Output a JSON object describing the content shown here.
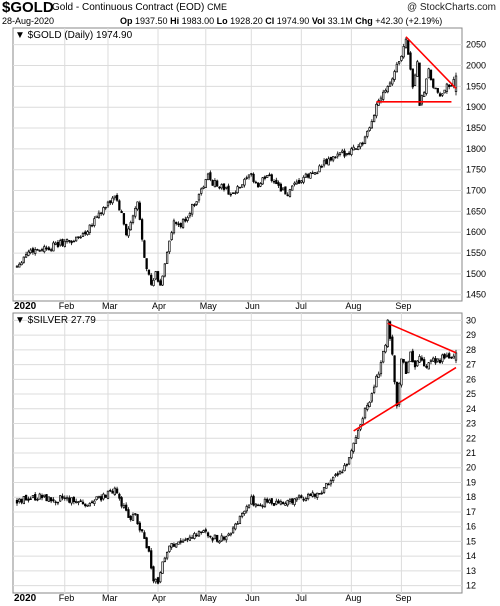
{
  "header": {
    "symbol": "$GOLD",
    "description": "Gold - Continuous Contract (EOD)",
    "exchange": "CME",
    "credit": "@ StockCharts.com",
    "date": "28-Aug-2020",
    "quote": {
      "op_label": "Op",
      "op": "1937.50",
      "hi_label": "Hi",
      "hi": "1983.00",
      "lo_label": "Lo",
      "lo": "1928.20",
      "cl_label": "Cl",
      "cl": "1974.90",
      "vol_label": "Vol",
      "vol": "33.1M",
      "chg_label": "Chg",
      "chg": "+42.30 (+2.19%)"
    }
  },
  "colors": {
    "candle": "#000000",
    "trendline": "#ff0000",
    "grid": "#dcdcdc",
    "frame": "#888888"
  },
  "chart_data": [
    {
      "type": "candlestick",
      "legend": "$GOLD (Daily) 1974.90",
      "y_axis_side": "right",
      "ylim": [
        1435,
        2090
      ],
      "yticks": [
        1450,
        1500,
        1550,
        1600,
        1650,
        1700,
        1750,
        1800,
        1850,
        1900,
        1950,
        2000,
        2050
      ],
      "x_labels": [
        "2020",
        "Feb",
        "Mar",
        "Apr",
        "May",
        "Jun",
        "Jul",
        "Aug",
        "Sep"
      ],
      "grid": true,
      "anchors": [
        [
          0,
          1520
        ],
        [
          5,
          1555
        ],
        [
          10,
          1560
        ],
        [
          15,
          1565
        ],
        [
          20,
          1575
        ],
        [
          25,
          1580
        ],
        [
          30,
          1600
        ],
        [
          35,
          1640
        ],
        [
          40,
          1665
        ],
        [
          43,
          1690
        ],
        [
          46,
          1640
        ],
        [
          48,
          1595
        ],
        [
          50,
          1620
        ],
        [
          53,
          1670
        ],
        [
          56,
          1545
        ],
        [
          59,
          1470
        ],
        [
          61,
          1500
        ],
        [
          63,
          1470
        ],
        [
          66,
          1555
        ],
        [
          69,
          1620
        ],
        [
          72,
          1615
        ],
        [
          75,
          1640
        ],
        [
          78,
          1670
        ],
        [
          81,
          1700
        ],
        [
          84,
          1735
        ],
        [
          86,
          1720
        ],
        [
          90,
          1710
        ],
        [
          95,
          1690
        ],
        [
          100,
          1720
        ],
        [
          103,
          1735
        ],
        [
          106,
          1710
        ],
        [
          110,
          1740
        ],
        [
          113,
          1725
        ],
        [
          116,
          1705
        ],
        [
          119,
          1690
        ],
        [
          122,
          1710
        ],
        [
          126,
          1730
        ],
        [
          130,
          1740
        ],
        [
          134,
          1760
        ],
        [
          138,
          1775
        ],
        [
          142,
          1785
        ],
        [
          146,
          1795
        ],
        [
          149,
          1805
        ],
        [
          152,
          1815
        ],
        [
          155,
          1845
        ],
        [
          158,
          1905
        ],
        [
          161,
          1940
        ],
        [
          164,
          1960
        ],
        [
          167,
          2000
        ],
        [
          170,
          2040
        ],
        [
          171,
          2069
        ],
        [
          172,
          2030
        ],
        [
          174,
          1950
        ],
        [
          176,
          2010
        ],
        [
          177,
          1900
        ],
        [
          179,
          1940
        ],
        [
          181,
          1985
        ],
        [
          183,
          1950
        ],
        [
          186,
          1920
        ],
        [
          189,
          1960
        ],
        [
          191,
          1945
        ],
        [
          193,
          1974.9
        ]
      ],
      "last_candle": {
        "open": 1937.5,
        "high": 1983.0,
        "low": 1928.2,
        "close": 1974.9
      },
      "trendlines": [
        {
          "points": [
            [
              171,
              2069
            ],
            [
              193,
              1945
            ]
          ]
        },
        {
          "points": [
            [
              158,
              1913
            ],
            [
              191,
              1913
            ]
          ]
        }
      ]
    },
    {
      "type": "candlestick",
      "legend": "$SILVER 27.79",
      "y_axis_side": "right",
      "ylim": [
        11.5,
        30.5
      ],
      "yticks": [
        12,
        13,
        14,
        15,
        16,
        17,
        18,
        19,
        20,
        21,
        22,
        23,
        24,
        25,
        26,
        27,
        28,
        29,
        30
      ],
      "x_labels": [
        "2020",
        "Feb",
        "Mar",
        "Apr",
        "May",
        "Jun",
        "Jul",
        "Aug",
        "Sep"
      ],
      "grid": true,
      "anchors": [
        [
          0,
          17.8
        ],
        [
          5,
          17.9
        ],
        [
          10,
          18.0
        ],
        [
          15,
          17.8
        ],
        [
          20,
          17.9
        ],
        [
          25,
          17.7
        ],
        [
          30,
          17.6
        ],
        [
          35,
          17.9
        ],
        [
          40,
          18.2
        ],
        [
          43,
          18.5
        ],
        [
          46,
          17.6
        ],
        [
          49,
          16.6
        ],
        [
          52,
          16.7
        ],
        [
          55,
          15.6
        ],
        [
          58,
          14.2
        ],
        [
          60,
          12.5
        ],
        [
          62,
          12.2
        ],
        [
          64,
          13.8
        ],
        [
          67,
          14.6
        ],
        [
          70,
          15.0
        ],
        [
          73,
          15.2
        ],
        [
          76,
          15.4
        ],
        [
          79,
          15.5
        ],
        [
          82,
          15.6
        ],
        [
          85,
          15.3
        ],
        [
          88,
          15.2
        ],
        [
          91,
          15.3
        ],
        [
          94,
          15.6
        ],
        [
          97,
          16.2
        ],
        [
          100,
          17.2
        ],
        [
          103,
          17.8
        ],
        [
          106,
          17.4
        ],
        [
          110,
          17.8
        ],
        [
          114,
          17.6
        ],
        [
          118,
          17.7
        ],
        [
          122,
          17.8
        ],
        [
          126,
          18.0
        ],
        [
          130,
          18.2
        ],
        [
          134,
          18.5
        ],
        [
          138,
          19.0
        ],
        [
          142,
          19.6
        ],
        [
          146,
          20.5
        ],
        [
          150,
          22.5
        ],
        [
          153,
          24.0
        ],
        [
          156,
          25.0
        ],
        [
          159,
          26.5
        ],
        [
          162,
          28.5
        ],
        [
          163,
          29.8
        ],
        [
          165,
          27.5
        ],
        [
          167,
          24.0
        ],
        [
          169,
          27.5
        ],
        [
          171,
          26.5
        ],
        [
          173,
          28.0
        ],
        [
          175,
          26.8
        ],
        [
          177,
          27.6
        ],
        [
          179,
          26.8
        ],
        [
          182,
          27.4
        ],
        [
          185,
          27.2
        ],
        [
          187,
          27.5
        ],
        [
          189,
          27.6
        ],
        [
          193,
          27.79
        ]
      ],
      "last_candle": {
        "open": 27.3,
        "high": 28.0,
        "low": 27.1,
        "close": 27.79
      },
      "trendlines": [
        {
          "points": [
            [
              163,
              29.8
            ],
            [
              193,
              27.8
            ]
          ]
        },
        {
          "points": [
            [
              148,
              22.5
            ],
            [
              193,
              26.8
            ]
          ]
        }
      ]
    }
  ]
}
